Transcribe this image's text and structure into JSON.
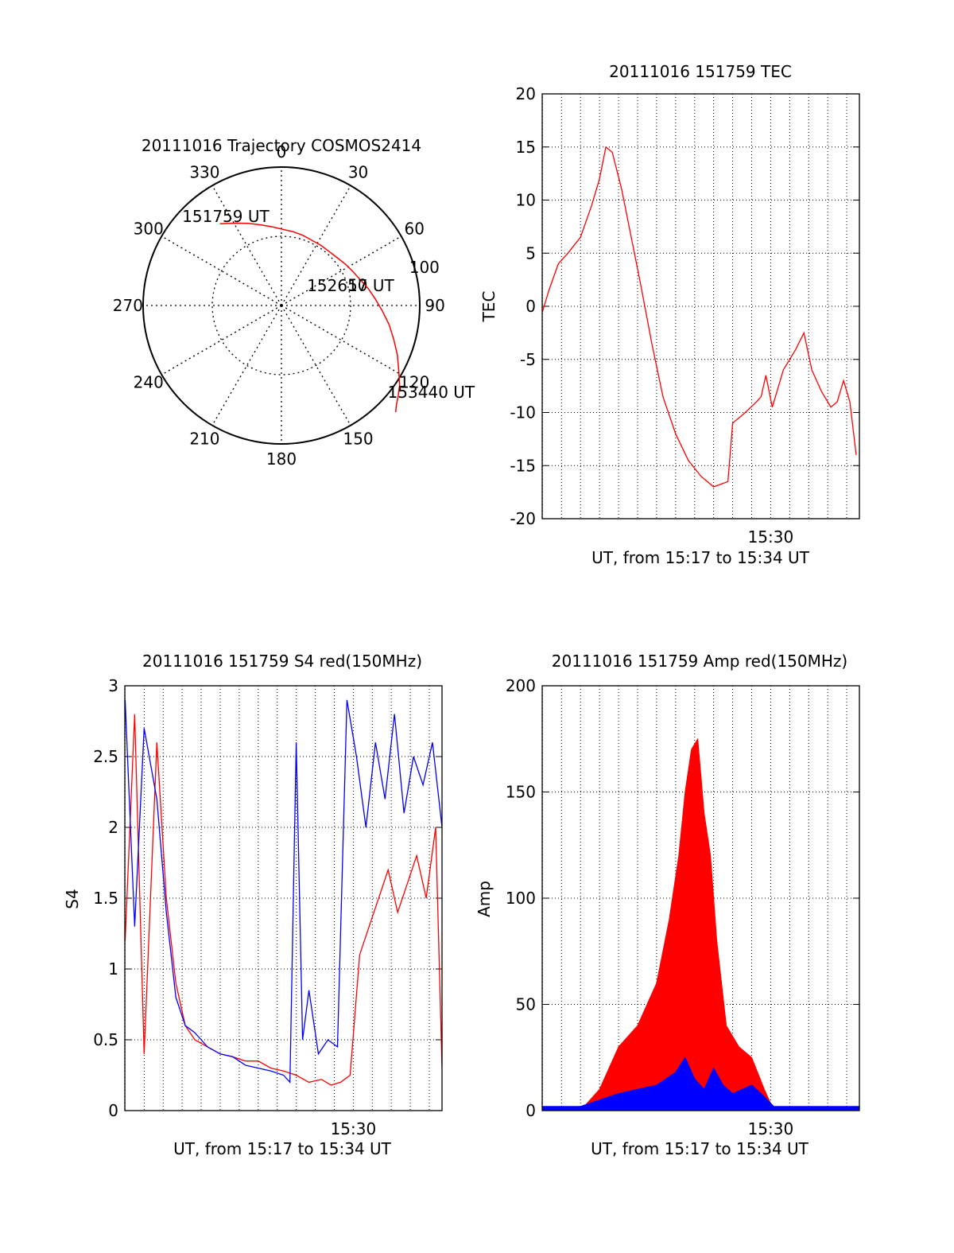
{
  "colors": {
    "red": "#ff0000",
    "blue": "#0000ff",
    "axis": "#000000",
    "grid": "#000000"
  },
  "chart_data": [
    {
      "id": "polar",
      "type": "polar",
      "title": "20111016 Trajectory COSMOS2414",
      "angle_labels": [
        "0",
        "30",
        "60",
        "90",
        "120",
        "150",
        "180",
        "210",
        "240",
        "270",
        "300",
        "330"
      ],
      "radial_labels": [
        "50",
        "100"
      ],
      "rmax": 100,
      "trajectory": [
        [
          323,
          74
        ],
        [
          331,
          68
        ],
        [
          338,
          64
        ],
        [
          346,
          60
        ],
        [
          354,
          57
        ],
        [
          1,
          55
        ],
        [
          9,
          54
        ],
        [
          17,
          53
        ],
        [
          25,
          52
        ],
        [
          33,
          52
        ],
        [
          41,
          52
        ],
        [
          49,
          53
        ],
        [
          57,
          55
        ],
        [
          64,
          57
        ],
        [
          72,
          60
        ],
        [
          79,
          64
        ],
        [
          86,
          68
        ],
        [
          93,
          73
        ],
        [
          100,
          79
        ],
        [
          107,
          85
        ],
        [
          113,
          91
        ],
        [
          119,
          97
        ],
        [
          124,
          103
        ],
        [
          128,
          107
        ],
        [
          131,
          110
        ],
        [
          133,
          113
        ]
      ],
      "annotations": [
        {
          "text": "151759 UT",
          "at": [
            328,
            76
          ]
        },
        {
          "text": "152617 UT",
          "at": [
            74,
            52
          ]
        },
        {
          "text": "153440 UT",
          "at": [
            120,
            125
          ]
        }
      ]
    },
    {
      "id": "tec",
      "type": "line",
      "title": "20111016 151759 TEC",
      "xlabel": "UT, from 15:17 to 15:34 UT",
      "ylabel": "TEC",
      "xlim": [
        "15:17:59",
        "15:34:40"
      ],
      "ylim": [
        -20,
        20
      ],
      "yticks": [
        -20,
        -15,
        -10,
        -5,
        0,
        5,
        10,
        15,
        20
      ],
      "xtick_labels": [
        {
          "at": "15:30:00",
          "label": "15:30"
        }
      ],
      "grid": true,
      "series": [
        {
          "color": "red",
          "x": [
            "15:18:00",
            "15:18:20",
            "15:18:50",
            "15:19:20",
            "15:20:00",
            "15:20:35",
            "15:21:00",
            "15:21:20",
            "15:21:40",
            "15:22:10",
            "15:22:40",
            "15:23:10",
            "15:23:45",
            "15:24:20",
            "15:25:00",
            "15:25:40",
            "15:26:20",
            "15:27:00",
            "15:27:45",
            "15:28:00",
            "15:28:40",
            "15:29:15",
            "15:29:30",
            "15:29:45",
            "15:30:05",
            "15:30:20",
            "15:30:40",
            "15:31:00",
            "15:31:20",
            "15:31:45",
            "15:32:10",
            "15:32:40",
            "15:33:10",
            "15:33:30",
            "15:33:50",
            "15:34:10",
            "15:34:30"
          ],
          "y": [
            -0.5,
            1.5,
            4.0,
            5.0,
            6.5,
            9.5,
            12.0,
            15.0,
            14.5,
            11.0,
            6.5,
            2.0,
            -3.5,
            -8.5,
            -12.0,
            -14.5,
            -16.0,
            -17.0,
            -16.5,
            -11.0,
            -10.0,
            -9.0,
            -8.5,
            -6.5,
            -9.5,
            -8.0,
            -6.0,
            -5.0,
            -4.0,
            -2.5,
            -6.0,
            -8.0,
            -9.5,
            -9.0,
            -7.0,
            -9.0,
            -14.0
          ]
        }
      ]
    },
    {
      "id": "s4",
      "type": "line",
      "title": "20111016 151759 S4 red(150MHz)",
      "xlabel": "UT, from 15:17 to 15:34 UT",
      "ylabel": "S4",
      "xlim": [
        "15:17:59",
        "15:34:40"
      ],
      "ylim": [
        0,
        3
      ],
      "yticks": [
        0,
        0.5,
        1,
        1.5,
        2,
        2.5,
        3
      ],
      "xtick_labels": [
        {
          "at": "15:30:00",
          "label": "15:30"
        }
      ],
      "grid": true,
      "series": [
        {
          "color": "red",
          "x": [
            "15:18:00",
            "15:18:30",
            "15:19:00",
            "15:19:40",
            "15:20:10",
            "15:20:40",
            "15:21:10",
            "15:21:40",
            "15:22:20",
            "15:23:00",
            "15:23:40",
            "15:24:20",
            "15:25:00",
            "15:25:40",
            "15:26:20",
            "15:27:00",
            "15:27:40",
            "15:28:20",
            "15:28:50",
            "15:29:20",
            "15:29:50",
            "15:30:20",
            "15:30:50",
            "15:31:20",
            "15:31:50",
            "15:32:20",
            "15:32:50",
            "15:33:20",
            "15:33:50",
            "15:34:20",
            "15:34:40"
          ],
          "y": [
            1.2,
            2.8,
            0.4,
            2.6,
            1.5,
            0.9,
            0.6,
            0.5,
            0.45,
            0.4,
            0.38,
            0.35,
            0.35,
            0.3,
            0.28,
            0.25,
            0.2,
            0.22,
            0.18,
            0.2,
            0.25,
            1.1,
            1.3,
            1.5,
            1.7,
            1.4,
            1.6,
            1.8,
            1.5,
            2.0,
            0.3
          ]
        },
        {
          "color": "blue",
          "x": [
            "15:18:00",
            "15:18:30",
            "15:19:00",
            "15:19:40",
            "15:20:10",
            "15:20:40",
            "15:21:10",
            "15:21:40",
            "15:22:20",
            "15:23:00",
            "15:23:40",
            "15:24:20",
            "15:25:00",
            "15:25:40",
            "15:26:20",
            "15:26:40",
            "15:27:00",
            "15:27:20",
            "15:27:40",
            "15:28:10",
            "15:28:40",
            "15:29:10",
            "15:29:40",
            "15:30:10",
            "15:30:40",
            "15:31:10",
            "15:31:40",
            "15:32:10",
            "15:32:40",
            "15:33:10",
            "15:33:40",
            "15:34:10",
            "15:34:40"
          ],
          "y": [
            2.9,
            1.3,
            2.7,
            2.2,
            1.4,
            0.8,
            0.6,
            0.55,
            0.45,
            0.4,
            0.38,
            0.32,
            0.3,
            0.28,
            0.25,
            0.2,
            2.6,
            0.5,
            0.85,
            0.4,
            0.5,
            0.45,
            2.9,
            2.5,
            2.0,
            2.6,
            2.2,
            2.8,
            2.1,
            2.5,
            2.3,
            2.6,
            2.0
          ]
        }
      ]
    },
    {
      "id": "amp",
      "type": "area",
      "title": "20111016 151759 Amp red(150MHz)",
      "xlabel": "UT, from 15:17 to 15:34 UT",
      "ylabel": "Amp",
      "xlim": [
        "15:17:59",
        "15:34:40"
      ],
      "ylim": [
        0,
        200
      ],
      "yticks": [
        0,
        50,
        100,
        150,
        200
      ],
      "xtick_labels": [
        {
          "at": "15:30:00",
          "label": "15:30"
        }
      ],
      "grid": true,
      "series": [
        {
          "color": "red",
          "x": [
            "15:18:00",
            "15:20:00",
            "15:21:00",
            "15:22:00",
            "15:23:00",
            "15:24:00",
            "15:24:40",
            "15:25:10",
            "15:25:30",
            "15:25:50",
            "15:26:10",
            "15:26:30",
            "15:26:50",
            "15:27:10",
            "15:27:40",
            "15:28:20",
            "15:29:00",
            "15:29:40",
            "15:30:10",
            "15:34:40"
          ],
          "y": [
            0,
            0,
            10,
            30,
            40,
            60,
            90,
            120,
            150,
            170,
            175,
            140,
            120,
            80,
            40,
            30,
            25,
            10,
            0,
            0
          ]
        },
        {
          "color": "blue",
          "x": [
            "15:18:00",
            "15:20:00",
            "15:21:00",
            "15:22:00",
            "15:23:00",
            "15:24:00",
            "15:25:00",
            "15:25:30",
            "15:26:00",
            "15:26:30",
            "15:27:00",
            "15:27:30",
            "15:28:00",
            "15:28:30",
            "15:29:00",
            "15:29:30",
            "15:30:10",
            "15:34:40"
          ],
          "y": [
            2,
            2,
            5,
            8,
            10,
            12,
            18,
            25,
            15,
            10,
            20,
            12,
            8,
            10,
            12,
            8,
            2,
            2
          ]
        }
      ]
    }
  ]
}
